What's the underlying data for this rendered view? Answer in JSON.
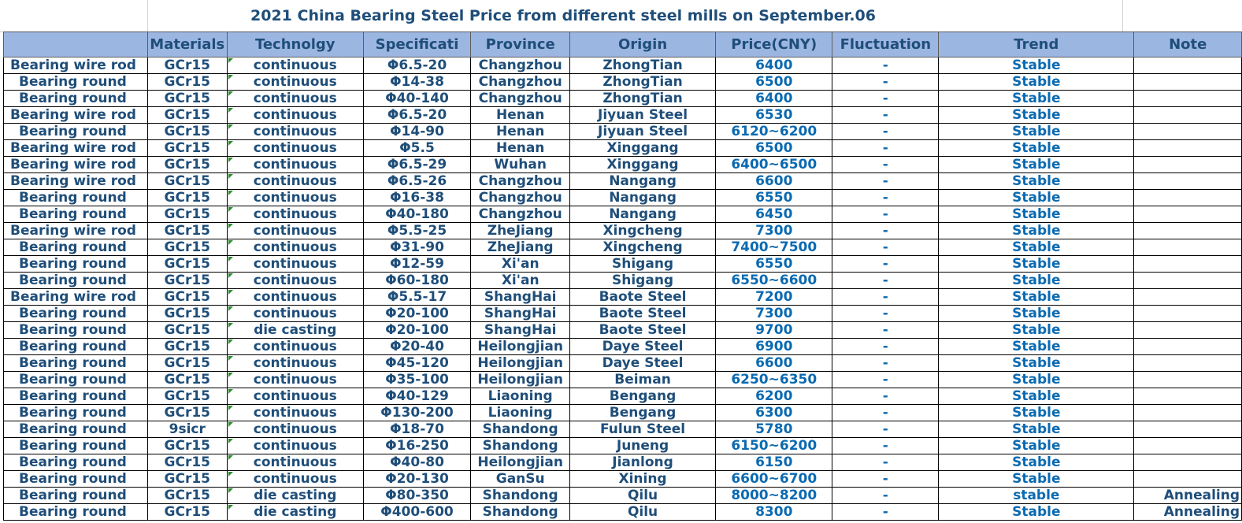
{
  "title": "2021 China Bearing Steel Price from different steel mills on  September.06",
  "headers": [
    "",
    "Materials",
    "Technolgy",
    "Specificati",
    "Province",
    "Origin",
    "Price(CNY)",
    "Fluctuation",
    "Trend",
    "Note"
  ],
  "rows": [
    [
      "Bearing wire rod",
      "GCr15",
      "continuous",
      "Φ6.5-20",
      "Changzhou",
      "ZhongTian",
      "6400",
      "-",
      "Stable",
      ""
    ],
    [
      "Bearing round",
      "GCr15",
      "continuous",
      "Φ14-38",
      "Changzhou",
      "ZhongTian",
      "6500",
      "-",
      "Stable",
      ""
    ],
    [
      "Bearing round",
      "GCr15",
      "continuous",
      "Φ40-140",
      "Changzhou",
      "ZhongTian",
      "6400",
      "-",
      "Stable",
      ""
    ],
    [
      "Bearing wire rod",
      "GCr15",
      "continuous",
      "Φ6.5-20",
      "Henan",
      "Jiyuan Steel",
      "6530",
      "-",
      "Stable",
      ""
    ],
    [
      "Bearing round",
      "GCr15",
      "continuous",
      "Φ14-90",
      "Henan",
      "Jiyuan Steel",
      "6120~6200",
      "-",
      "Stable",
      ""
    ],
    [
      "Bearing wire rod",
      "GCr15",
      "continuous",
      "Φ5.5",
      "Henan",
      "Xinggang",
      "6500",
      "-",
      "Stable",
      ""
    ],
    [
      "Bearing wire rod",
      "GCr15",
      "continuous",
      "Φ6.5-29",
      "Wuhan",
      "Xinggang",
      "6400~6500",
      "-",
      "Stable",
      ""
    ],
    [
      "Bearing wire rod",
      "GCr15",
      "continuous",
      "Φ6.5-26",
      "Changzhou",
      "Nangang",
      "6600",
      "-",
      "Stable",
      ""
    ],
    [
      "Bearing round",
      "GCr15",
      "continuous",
      "Φ16-38",
      "Changzhou",
      "Nangang",
      "6550",
      "-",
      "Stable",
      ""
    ],
    [
      "Bearing round",
      "GCr15",
      "continuous",
      "Φ40-180",
      "Changzhou",
      "Nangang",
      "6450",
      "-",
      "Stable",
      ""
    ],
    [
      "Bearing wire rod",
      "GCr15",
      "continuous",
      "Φ5.5-25",
      "ZheJiang",
      "Xingcheng",
      "7300",
      "-",
      "Stable",
      ""
    ],
    [
      "Bearing round",
      "GCr15",
      "continuous",
      "Φ31-90",
      "ZheJiang",
      "Xingcheng",
      "7400~7500",
      "-",
      "Stable",
      ""
    ],
    [
      "Bearing round",
      "GCr15",
      "continuous",
      "Φ12-59",
      "Xi'an",
      "Shigang",
      "6550",
      "-",
      "Stable",
      ""
    ],
    [
      "Bearing round",
      "GCr15",
      "continuous",
      "Φ60-180",
      "Xi'an",
      "Shigang",
      "6550~6600",
      "-",
      "Stable",
      ""
    ],
    [
      "Bearing wire rod",
      "GCr15",
      "continuous",
      "Φ5.5-17",
      "ShangHai",
      "Baote Steel",
      "7200",
      "-",
      "Stable",
      ""
    ],
    [
      "Bearing round",
      "GCr15",
      "continuous",
      "Φ20-100",
      "ShangHai",
      "Baote Steel",
      "7300",
      "-",
      "Stable",
      ""
    ],
    [
      "Bearing round",
      "GCr15",
      "die casting",
      "Φ20-100",
      "ShangHai",
      "Baote Steel",
      "9700",
      "-",
      "Stable",
      ""
    ],
    [
      "Bearing round",
      "GCr15",
      "continuous",
      "Φ20-40",
      "Heilongjian",
      "Daye  Steel",
      "6900",
      "-",
      "Stable",
      ""
    ],
    [
      "Bearing round",
      "GCr15",
      "continuous",
      "Φ45-120",
      "Heilongjian",
      "Daye  Steel",
      "6600",
      "-",
      "Stable",
      ""
    ],
    [
      "Bearing round",
      "GCr15",
      "continuous",
      "Φ35-100",
      "Heilongjian",
      "Beiman",
      "6250~6350",
      "-",
      "Stable",
      ""
    ],
    [
      "Bearing round",
      "GCr15",
      "continuous",
      "Φ40-129",
      "Liaoning",
      "Bengang",
      "6200",
      "-",
      "Stable",
      ""
    ],
    [
      "Bearing round",
      "GCr15",
      "continuous",
      "Φ130-200",
      "Liaoning",
      "Bengang",
      "6300",
      "-",
      "Stable",
      ""
    ],
    [
      "Bearing round",
      "9sicr",
      "continuous",
      "Φ18-70",
      "Shandong",
      "Fulun Steel",
      "5780",
      "-",
      "Stable",
      ""
    ],
    [
      "Bearing round",
      "GCr15",
      "continuous",
      "Φ16-250",
      "Shandong",
      "Juneng",
      "6150~6200",
      "-",
      "Stable",
      ""
    ],
    [
      "Bearing round",
      "GCr15",
      "continuous",
      "Φ40-80",
      "Heilongjian",
      "Jianlong",
      "6150",
      "-",
      "Stable",
      ""
    ],
    [
      "Bearing round",
      "GCr15",
      "continuous",
      "Φ20-130",
      "GanSu",
      "Xining",
      "6600~6700",
      "-",
      "Stable",
      ""
    ],
    [
      "Bearing round",
      "GCr15",
      "die casting",
      "Φ80-350",
      "Shandong",
      "Qilu",
      "8000~8200",
      "-",
      "stable",
      "Annealing"
    ],
    [
      "Bearing round",
      "GCr15",
      "die casting",
      "Φ400-600",
      "Shandong",
      "Qilu",
      "8300",
      "-",
      "Stable",
      "Annealing"
    ]
  ]
}
